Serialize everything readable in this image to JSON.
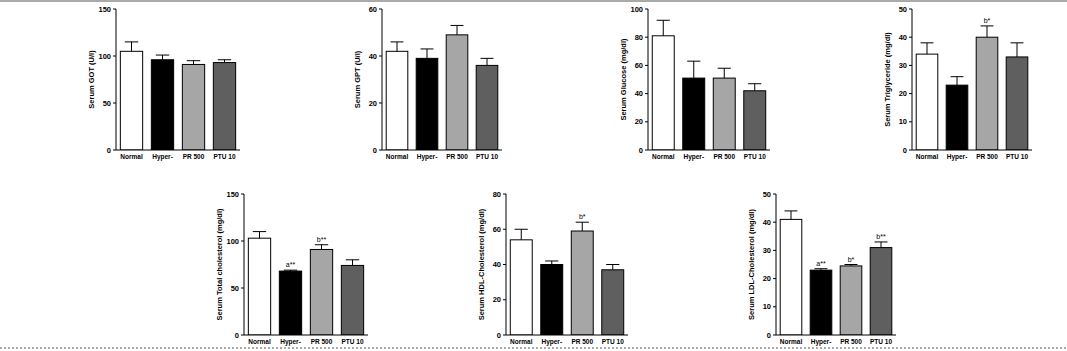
{
  "chart_data": [
    {
      "type": "bar",
      "y_label": "Serum GOT (U/l)",
      "categories": [
        "Normal",
        "Hyper-",
        "PR 500",
        "PTU 10"
      ],
      "values": [
        105,
        96,
        91,
        93
      ],
      "errors": [
        10,
        5,
        4,
        3
      ],
      "colors": [
        "#ffffff",
        "#000000",
        "#a6a6a6",
        "#5f5f5f"
      ],
      "ylim": [
        0,
        150
      ],
      "yticks": [
        0,
        50,
        100,
        150
      ],
      "significance": [
        null,
        null,
        null,
        null
      ]
    },
    {
      "type": "bar",
      "y_label": "Serum GPT (U/l)",
      "categories": [
        "Normal",
        "Hyper-",
        "PR 500",
        "PTU 10"
      ],
      "values": [
        42,
        39,
        49,
        36
      ],
      "errors": [
        4,
        4,
        4,
        3
      ],
      "colors": [
        "#ffffff",
        "#000000",
        "#a6a6a6",
        "#5f5f5f"
      ],
      "ylim": [
        0,
        60
      ],
      "yticks": [
        0,
        20,
        40,
        60
      ],
      "significance": [
        null,
        null,
        null,
        null
      ]
    },
    {
      "type": "bar",
      "y_label": "Serum Glucose (mg/dl)",
      "categories": [
        "Normal",
        "Hyper-",
        "PR 500",
        "PTU 10"
      ],
      "values": [
        81,
        51,
        51,
        42
      ],
      "errors": [
        11,
        12,
        7,
        5
      ],
      "colors": [
        "#ffffff",
        "#000000",
        "#a6a6a6",
        "#5f5f5f"
      ],
      "ylim": [
        0,
        100
      ],
      "yticks": [
        0,
        20,
        40,
        60,
        80,
        100
      ],
      "significance": [
        null,
        null,
        null,
        null
      ]
    },
    {
      "type": "bar",
      "y_label": "Serum Triglyceride (mg/dl)",
      "categories": [
        "Normal",
        "Hyper-",
        "PR 500",
        "PTU 10"
      ],
      "values": [
        34,
        23,
        40,
        33
      ],
      "errors": [
        4,
        3,
        4,
        5
      ],
      "colors": [
        "#ffffff",
        "#000000",
        "#a6a6a6",
        "#5f5f5f"
      ],
      "ylim": [
        0,
        50
      ],
      "yticks": [
        0,
        10,
        20,
        30,
        40,
        50
      ],
      "significance": [
        null,
        null,
        "b*",
        null
      ]
    },
    {
      "type": "bar",
      "y_label": "Serum Total cholesterol (mg/dl)",
      "categories": [
        "Normal",
        "Hyper-",
        "PR 500",
        "PTU 10"
      ],
      "values": [
        103,
        68,
        91,
        74
      ],
      "errors": [
        7,
        1,
        5,
        6
      ],
      "colors": [
        "#ffffff",
        "#000000",
        "#a6a6a6",
        "#5f5f5f"
      ],
      "ylim": [
        0,
        150
      ],
      "yticks": [
        0,
        50,
        100,
        150
      ],
      "significance": [
        null,
        "a**",
        "b**",
        null
      ]
    },
    {
      "type": "bar",
      "y_label": "Serum HDL-Cholesterol (mg/dl)",
      "categories": [
        "Normal",
        "Hyper-",
        "PR 500",
        "PTU 10"
      ],
      "values": [
        54,
        40,
        59,
        37
      ],
      "errors": [
        6,
        2,
        5,
        3
      ],
      "colors": [
        "#ffffff",
        "#000000",
        "#a6a6a6",
        "#5f5f5f"
      ],
      "ylim": [
        0,
        80
      ],
      "yticks": [
        0,
        20,
        40,
        60,
        80
      ],
      "significance": [
        null,
        null,
        "b*",
        null
      ]
    },
    {
      "type": "bar",
      "y_label": "Serum LDL-Cholesterol (mg/dl)",
      "categories": [
        "Normal",
        "Hyper-",
        "PR 500",
        "PTU 10"
      ],
      "values": [
        41,
        23,
        24.5,
        31
      ],
      "errors": [
        3,
        0.5,
        0.5,
        2
      ],
      "colors": [
        "#ffffff",
        "#000000",
        "#a6a6a6",
        "#5f5f5f"
      ],
      "ylim": [
        0,
        50
      ],
      "yticks": [
        0,
        10,
        20,
        30,
        40,
        50
      ],
      "significance": [
        null,
        "a**",
        "b*",
        "b**"
      ]
    }
  ]
}
